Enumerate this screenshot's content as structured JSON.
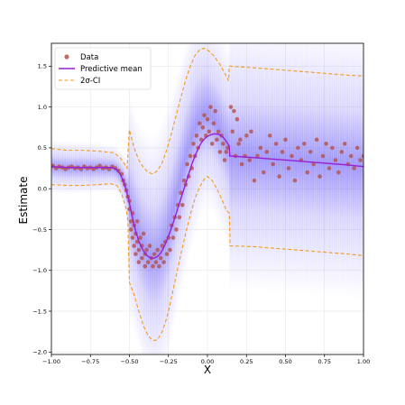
{
  "chart_data": {
    "type": "scatter",
    "xlabel": "X",
    "ylabel": "Estimate",
    "xlim": [
      -1.0,
      1.0
    ],
    "ylim": [
      -2.03,
      1.78
    ],
    "xticks": [
      -1.0,
      -0.75,
      -0.5,
      -0.25,
      0.0,
      0.25,
      0.5,
      0.75,
      1.0
    ],
    "xtick_labels": [
      "−1.00",
      "−0.75",
      "−0.50",
      "−0.25",
      "0.00",
      "0.25",
      "0.50",
      "0.75",
      "1.00"
    ],
    "yticks": [
      1.5,
      1.0,
      0.5,
      0.0,
      -0.5,
      -1.0,
      -1.5,
      -2.0
    ],
    "ytick_labels": [
      "1.5",
      "1.0",
      "0.5",
      "0.0",
      "−0.5",
      "−1.0",
      "−1.5",
      "−2.0"
    ],
    "grid": true,
    "legend_position": "top-left",
    "series": [
      {
        "name": "Data",
        "kind": "scatter",
        "color": "#b5524e",
        "points": [
          [
            -0.99,
            0.28
          ],
          [
            -0.97,
            0.25
          ],
          [
            -0.95,
            0.27
          ],
          [
            -0.93,
            0.26
          ],
          [
            -0.91,
            0.24
          ],
          [
            -0.89,
            0.26
          ],
          [
            -0.87,
            0.27
          ],
          [
            -0.85,
            0.25
          ],
          [
            -0.83,
            0.26
          ],
          [
            -0.81,
            0.24
          ],
          [
            -0.79,
            0.27
          ],
          [
            -0.77,
            0.25
          ],
          [
            -0.75,
            0.26
          ],
          [
            -0.73,
            0.24
          ],
          [
            -0.71,
            0.26
          ],
          [
            -0.69,
            0.28
          ],
          [
            -0.67,
            0.25
          ],
          [
            -0.65,
            0.26
          ],
          [
            -0.63,
            0.24
          ],
          [
            -0.61,
            0.27
          ],
          [
            -0.59,
            0.25
          ],
          [
            -0.57,
            0.22
          ],
          [
            -0.55,
            0.18
          ],
          [
            -0.54,
            0.1
          ],
          [
            -0.53,
            0.05
          ],
          [
            -0.52,
            -0.02
          ],
          [
            -0.51,
            -0.1
          ],
          [
            -0.5,
            -0.15
          ],
          [
            -0.5,
            -0.25
          ],
          [
            -0.49,
            -0.4
          ],
          [
            -0.49,
            -0.5
          ],
          [
            -0.48,
            -0.3
          ],
          [
            -0.48,
            -0.6
          ],
          [
            -0.47,
            -0.45
          ],
          [
            -0.47,
            -0.7
          ],
          [
            -0.46,
            -0.55
          ],
          [
            -0.46,
            -0.8
          ],
          [
            -0.45,
            -0.65
          ],
          [
            -0.45,
            -0.4
          ],
          [
            -0.44,
            -0.75
          ],
          [
            -0.44,
            -0.9
          ],
          [
            -0.43,
            -0.6
          ],
          [
            -0.42,
            -0.85
          ],
          [
            -0.42,
            -0.7
          ],
          [
            -0.41,
            -0.55
          ],
          [
            -0.4,
            -0.8
          ],
          [
            -0.4,
            -0.95
          ],
          [
            -0.39,
            -0.75
          ],
          [
            -0.38,
            -0.9
          ],
          [
            -0.37,
            -0.7
          ],
          [
            -0.36,
            -0.85
          ],
          [
            -0.35,
            -0.95
          ],
          [
            -0.34,
            -0.8
          ],
          [
            -0.33,
            -0.9
          ],
          [
            -0.32,
            -0.75
          ],
          [
            -0.31,
            -0.95
          ],
          [
            -0.3,
            -0.85
          ],
          [
            -0.29,
            -0.7
          ],
          [
            -0.28,
            -0.9
          ],
          [
            -0.27,
            -0.65
          ],
          [
            -0.26,
            -0.8
          ],
          [
            -0.25,
            -0.6
          ],
          [
            -0.24,
            -0.75
          ],
          [
            -0.23,
            -0.45
          ],
          [
            -0.22,
            -0.6
          ],
          [
            -0.21,
            -0.35
          ],
          [
            -0.2,
            -0.5
          ],
          [
            -0.19,
            -0.2
          ],
          [
            -0.18,
            -0.35
          ],
          [
            -0.17,
            -0.05
          ],
          [
            -0.16,
            -0.2
          ],
          [
            -0.15,
            0.1
          ],
          [
            -0.14,
            0.05
          ],
          [
            -0.13,
            0.3
          ],
          [
            -0.12,
            0.15
          ],
          [
            -0.11,
            0.4
          ],
          [
            -0.1,
            0.25
          ],
          [
            -0.09,
            0.55
          ],
          [
            -0.08,
            0.4
          ],
          [
            -0.07,
            0.65
          ],
          [
            -0.06,
            0.5
          ],
          [
            -0.05,
            0.8
          ],
          [
            -0.04,
            0.6
          ],
          [
            -0.03,
            0.75
          ],
          [
            -0.02,
            0.9
          ],
          [
            -0.01,
            0.65
          ],
          [
            0.0,
            0.85
          ],
          [
            0.01,
            0.7
          ],
          [
            0.02,
            1.0
          ],
          [
            0.03,
            0.55
          ],
          [
            0.04,
            0.8
          ],
          [
            0.05,
            0.95
          ],
          [
            0.06,
            0.6
          ],
          [
            0.07,
            0.7
          ],
          [
            0.08,
            0.45
          ],
          [
            0.09,
            0.65
          ],
          [
            0.1,
            0.55
          ],
          [
            0.11,
            0.35
          ],
          [
            0.12,
            0.45
          ],
          [
            0.13,
            0.5
          ],
          [
            0.15,
            1.0
          ],
          [
            0.16,
            0.7
          ],
          [
            0.17,
            0.95
          ],
          [
            0.18,
            0.4
          ],
          [
            0.19,
            0.85
          ],
          [
            0.2,
            0.55
          ],
          [
            0.21,
            0.6
          ],
          [
            0.22,
            0.3
          ],
          [
            0.24,
            0.4
          ],
          [
            0.25,
            0.65
          ],
          [
            0.27,
            0.35
          ],
          [
            0.28,
            0.7
          ],
          [
            0.3,
            0.1
          ],
          [
            0.32,
            0.4
          ],
          [
            0.34,
            0.5
          ],
          [
            0.36,
            0.2
          ],
          [
            0.38,
            0.45
          ],
          [
            0.4,
            0.65
          ],
          [
            0.42,
            0.3
          ],
          [
            0.44,
            0.55
          ],
          [
            0.46,
            0.15
          ],
          [
            0.48,
            0.45
          ],
          [
            0.5,
            0.6
          ],
          [
            0.52,
            0.25
          ],
          [
            0.54,
            0.4
          ],
          [
            0.56,
            0.1
          ],
          [
            0.58,
            0.5
          ],
          [
            0.6,
            0.35
          ],
          [
            0.62,
            0.55
          ],
          [
            0.64,
            0.2
          ],
          [
            0.66,
            0.45
          ],
          [
            0.68,
            0.3
          ],
          [
            0.7,
            0.6
          ],
          [
            0.72,
            0.15
          ],
          [
            0.74,
            0.4
          ],
          [
            0.76,
            0.55
          ],
          [
            0.78,
            0.25
          ],
          [
            0.8,
            0.5
          ],
          [
            0.82,
            0.35
          ],
          [
            0.84,
            0.2
          ],
          [
            0.86,
            0.45
          ],
          [
            0.88,
            0.55
          ],
          [
            0.9,
            0.3
          ],
          [
            0.92,
            0.4
          ],
          [
            0.94,
            0.25
          ],
          [
            0.96,
            0.5
          ],
          [
            0.98,
            0.35
          ],
          [
            1.0,
            0.4
          ]
        ]
      },
      {
        "name": "Predictive mean",
        "kind": "line",
        "color": "#9a1fd6",
        "points": [
          [
            -1.0,
            0.27
          ],
          [
            -0.9,
            0.26
          ],
          [
            -0.8,
            0.26
          ],
          [
            -0.7,
            0.26
          ],
          [
            -0.62,
            0.26
          ],
          [
            -0.6,
            0.25
          ],
          [
            -0.58,
            0.23
          ],
          [
            -0.56,
            0.18
          ],
          [
            -0.54,
            0.1
          ],
          [
            -0.52,
            -0.02
          ],
          [
            -0.5,
            -0.18
          ],
          [
            -0.48,
            -0.36
          ],
          [
            -0.46,
            -0.52
          ],
          [
            -0.44,
            -0.64
          ],
          [
            -0.42,
            -0.73
          ],
          [
            -0.4,
            -0.79
          ],
          [
            -0.38,
            -0.83
          ],
          [
            -0.36,
            -0.85
          ],
          [
            -0.34,
            -0.85
          ],
          [
            -0.32,
            -0.83
          ],
          [
            -0.3,
            -0.79
          ],
          [
            -0.28,
            -0.72
          ],
          [
            -0.26,
            -0.63
          ],
          [
            -0.24,
            -0.53
          ],
          [
            -0.22,
            -0.42
          ],
          [
            -0.2,
            -0.3
          ],
          [
            -0.18,
            -0.18
          ],
          [
            -0.16,
            -0.06
          ],
          [
            -0.14,
            0.06
          ],
          [
            -0.12,
            0.18
          ],
          [
            -0.1,
            0.3
          ],
          [
            -0.08,
            0.4
          ],
          [
            -0.06,
            0.49
          ],
          [
            -0.04,
            0.56
          ],
          [
            -0.02,
            0.61
          ],
          [
            0.0,
            0.64
          ],
          [
            0.02,
            0.66
          ],
          [
            0.04,
            0.67
          ],
          [
            0.06,
            0.67
          ],
          [
            0.08,
            0.66
          ],
          [
            0.1,
            0.63
          ],
          [
            0.12,
            0.58
          ],
          [
            0.14,
            0.52
          ],
          [
            0.143,
            0.4
          ],
          [
            0.3,
            0.38
          ],
          [
            0.5,
            0.35
          ],
          [
            0.7,
            0.32
          ],
          [
            0.9,
            0.29
          ],
          [
            1.0,
            0.27
          ]
        ]
      },
      {
        "name": "2σ-CI",
        "kind": "band",
        "color": "#f39a1c",
        "upper": [
          [
            -1.0,
            0.49
          ],
          [
            -0.9,
            0.47
          ],
          [
            -0.8,
            0.47
          ],
          [
            -0.7,
            0.46
          ],
          [
            -0.6,
            0.44
          ],
          [
            -0.56,
            0.38
          ],
          [
            -0.53,
            0.3
          ],
          [
            -0.515,
            0.25
          ],
          [
            -0.5,
            0.72
          ],
          [
            -0.47,
            0.5
          ],
          [
            -0.44,
            0.35
          ],
          [
            -0.41,
            0.26
          ],
          [
            -0.38,
            0.2
          ],
          [
            -0.35,
            0.18
          ],
          [
            -0.32,
            0.22
          ],
          [
            -0.29,
            0.32
          ],
          [
            -0.26,
            0.48
          ],
          [
            -0.23,
            0.68
          ],
          [
            -0.2,
            0.9
          ],
          [
            -0.17,
            1.12
          ],
          [
            -0.14,
            1.33
          ],
          [
            -0.11,
            1.5
          ],
          [
            -0.08,
            1.63
          ],
          [
            -0.05,
            1.7
          ],
          [
            -0.02,
            1.72
          ],
          [
            0.0,
            1.7
          ],
          [
            0.04,
            1.63
          ],
          [
            0.08,
            1.52
          ],
          [
            0.12,
            1.38
          ],
          [
            0.135,
            1.32
          ],
          [
            0.14,
            1.5
          ],
          [
            0.3,
            1.48
          ],
          [
            0.5,
            1.45
          ],
          [
            0.7,
            1.42
          ],
          [
            0.9,
            1.39
          ],
          [
            1.0,
            1.38
          ]
        ],
        "lower": [
          [
            -1.0,
            0.05
          ],
          [
            -0.9,
            0.04
          ],
          [
            -0.8,
            0.04
          ],
          [
            -0.7,
            0.05
          ],
          [
            -0.62,
            0.06
          ],
          [
            -0.58,
            0.04
          ],
          [
            -0.55,
            -0.06
          ],
          [
            -0.52,
            -0.25
          ],
          [
            -0.51,
            -0.38
          ],
          [
            -0.5,
            -1.15
          ],
          [
            -0.47,
            -1.3
          ],
          [
            -0.44,
            -1.5
          ],
          [
            -0.41,
            -1.68
          ],
          [
            -0.38,
            -1.8
          ],
          [
            -0.35,
            -1.86
          ],
          [
            -0.32,
            -1.85
          ],
          [
            -0.29,
            -1.75
          ],
          [
            -0.26,
            -1.58
          ],
          [
            -0.23,
            -1.33
          ],
          [
            -0.2,
            -1.06
          ],
          [
            -0.17,
            -0.8
          ],
          [
            -0.14,
            -0.55
          ],
          [
            -0.11,
            -0.32
          ],
          [
            -0.08,
            -0.12
          ],
          [
            -0.05,
            0.02
          ],
          [
            -0.02,
            0.12
          ],
          [
            0.0,
            0.15
          ],
          [
            0.03,
            0.1
          ],
          [
            0.06,
            0.0
          ],
          [
            0.09,
            -0.12
          ],
          [
            0.12,
            -0.26
          ],
          [
            0.14,
            -0.3
          ],
          [
            0.145,
            -0.7
          ],
          [
            0.3,
            -0.71
          ],
          [
            0.5,
            -0.74
          ],
          [
            0.7,
            -0.77
          ],
          [
            0.9,
            -0.8
          ],
          [
            1.0,
            -0.82
          ]
        ]
      }
    ]
  }
}
